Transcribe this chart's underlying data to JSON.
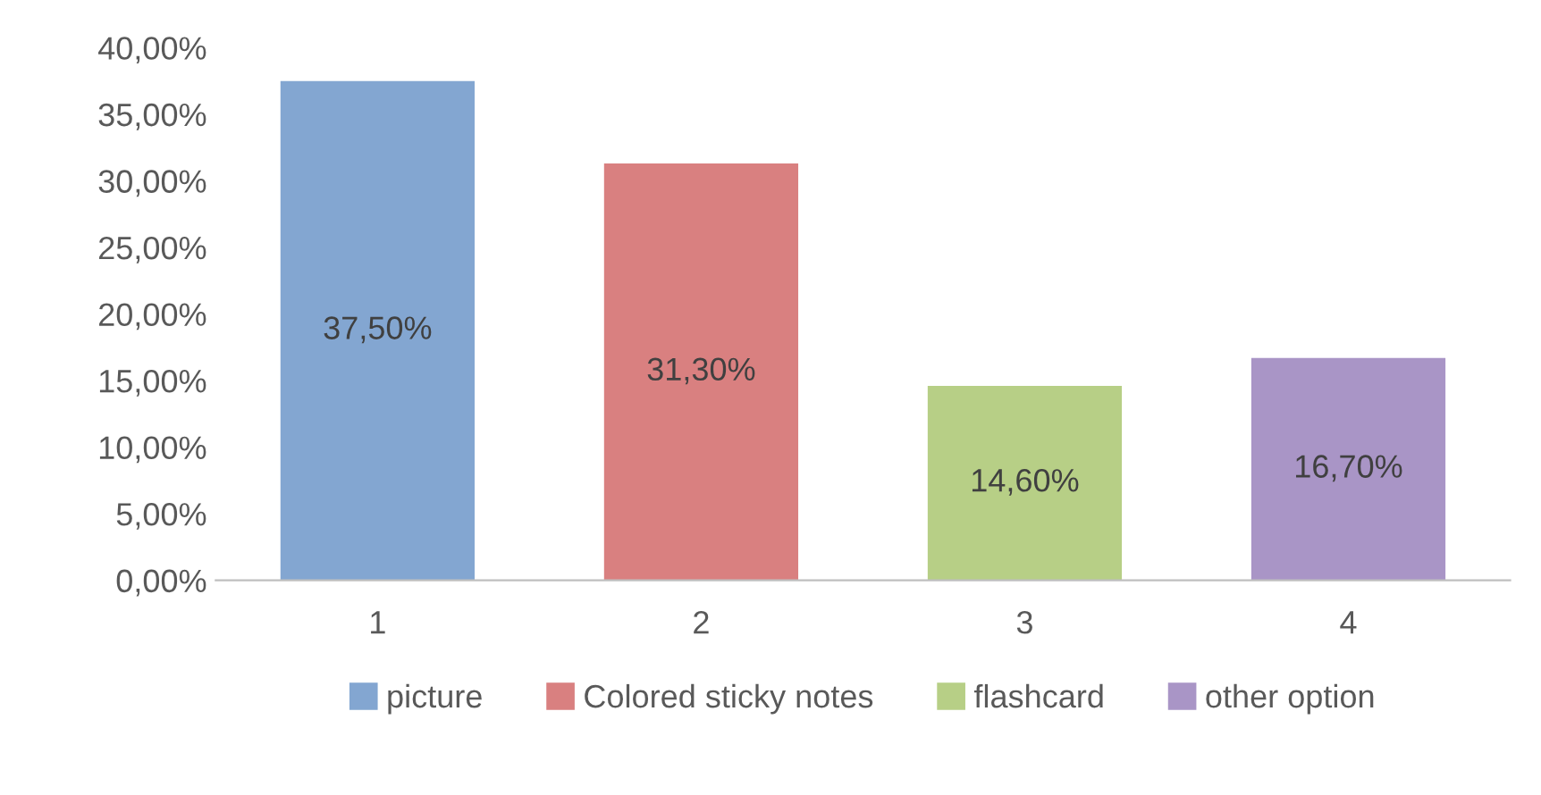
{
  "chart_data": {
    "type": "bar",
    "categories": [
      "1",
      "2",
      "3",
      "4"
    ],
    "series": [
      {
        "name": "picture",
        "color": "#83a6d1",
        "values": [
          37.5,
          null,
          null,
          null
        ],
        "value_labels": [
          "37,50%",
          null,
          null,
          null
        ]
      },
      {
        "name": "Colored sticky notes",
        "color": "#d98080",
        "values": [
          null,
          31.3,
          null,
          null
        ],
        "value_labels": [
          null,
          "31,30%",
          null,
          null
        ]
      },
      {
        "name": "flashcard",
        "color": "#b7cf86",
        "values": [
          null,
          null,
          14.6,
          null
        ],
        "value_labels": [
          null,
          null,
          "14,60%",
          null
        ]
      },
      {
        "name": "other option",
        "color": "#a995c6",
        "values": [
          null,
          null,
          null,
          16.7
        ],
        "value_labels": [
          null,
          null,
          null,
          "16,70%"
        ]
      }
    ],
    "ylim": [
      0,
      40
    ],
    "yticks": [
      {
        "value": 0,
        "label": "0,00%"
      },
      {
        "value": 5,
        "label": "5,00%"
      },
      {
        "value": 10,
        "label": "10,00%"
      },
      {
        "value": 15,
        "label": "15,00%"
      },
      {
        "value": 20,
        "label": "20,00%"
      },
      {
        "value": 25,
        "label": "25,00%"
      },
      {
        "value": 30,
        "label": "30,00%"
      },
      {
        "value": 35,
        "label": "35,00%"
      },
      {
        "value": 40,
        "label": "40,00%"
      }
    ],
    "grid": false,
    "legend": "bottom"
  }
}
